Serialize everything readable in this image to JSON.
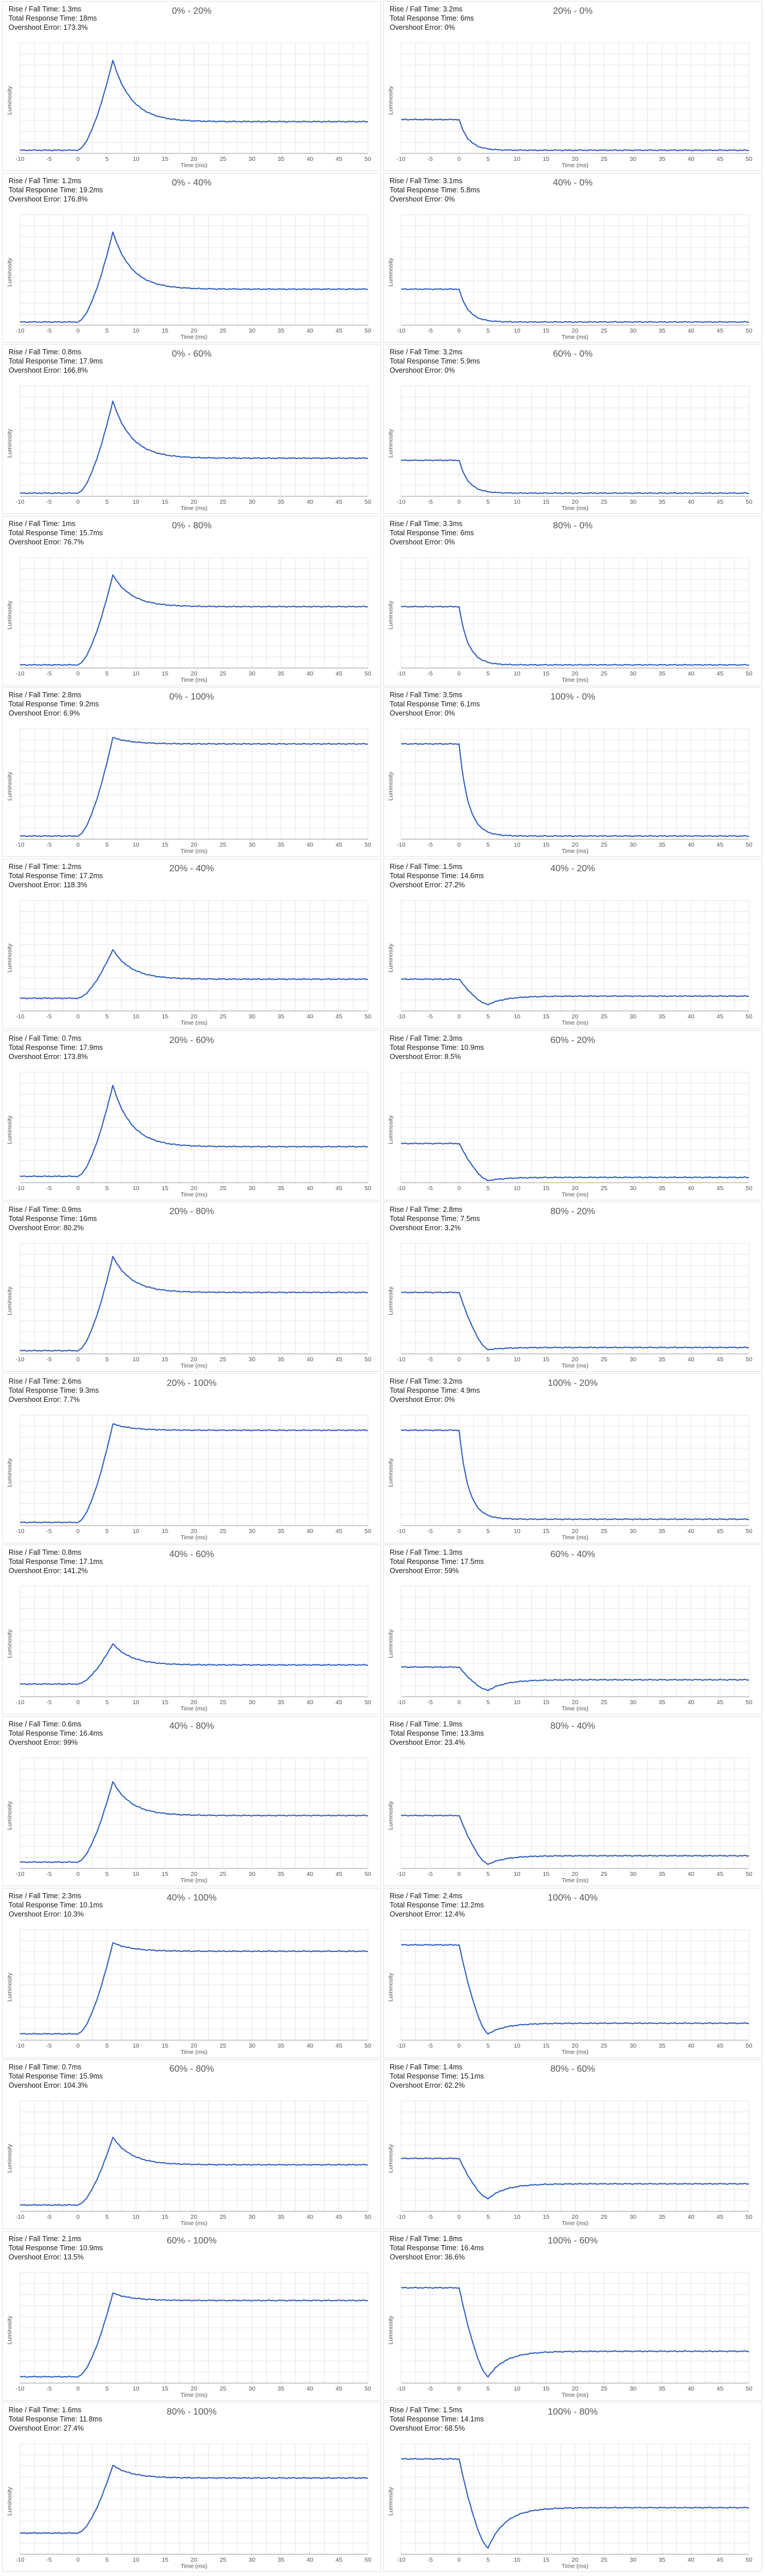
{
  "labels": {
    "rise_prefix": "Rise / Fall Time: ",
    "trt_prefix": "Total Response Time: ",
    "os_prefix": "Overshoot Error: ",
    "xlabel": "Time (ms)",
    "ylabel": "Luminosity"
  },
  "colors": {
    "line": "#2f5fbf",
    "grid": "#e6e6e6",
    "axis": "#999999"
  },
  "chart_data": [
    {
      "type": "line",
      "title": "0% - 20%",
      "rise_fall": "1.3ms",
      "total_response": "18ms",
      "overshoot": "173.3%",
      "x_ticks": [
        -10,
        -5,
        0,
        5,
        10,
        15,
        20,
        25,
        30,
        35,
        40,
        45,
        50
      ],
      "xlim": [
        -10,
        50
      ],
      "start_level": 0.03,
      "end_level": 0.3,
      "peak_level": 0.88,
      "peak_time_ms": 6,
      "grid": true
    },
    {
      "type": "line",
      "title": "20% - 0%",
      "rise_fall": "3.2ms",
      "total_response": "6ms",
      "overshoot": "0%",
      "x_ticks": [
        -10,
        -5,
        0,
        5,
        10,
        15,
        20,
        25,
        30,
        35,
        40,
        45,
        50
      ],
      "xlim": [
        -10,
        50
      ],
      "start_level": 0.32,
      "end_level": 0.03,
      "grid": true
    },
    {
      "type": "line",
      "title": "0% - 40%",
      "rise_fall": "1.2ms",
      "total_response": "19.2ms",
      "overshoot": "176.8%",
      "x_ticks": [
        -10,
        -5,
        0,
        5,
        10,
        15,
        20,
        25,
        30,
        35,
        40,
        45,
        50
      ],
      "xlim": [
        -10,
        50
      ],
      "start_level": 0.03,
      "end_level": 0.34,
      "peak_level": 0.88,
      "peak_time_ms": 6,
      "grid": true
    },
    {
      "type": "line",
      "title": "40% - 0%",
      "rise_fall": "3.1ms",
      "total_response": "5.8ms",
      "overshoot": "0%",
      "x_ticks": [
        -10,
        -5,
        0,
        5,
        10,
        15,
        20,
        25,
        30,
        35,
        40,
        45,
        50
      ],
      "xlim": [
        -10,
        50
      ],
      "start_level": 0.34,
      "end_level": 0.03,
      "grid": true
    },
    {
      "type": "line",
      "title": "0% - 60%",
      "rise_fall": "0.8ms",
      "total_response": "17.9ms",
      "overshoot": "166.8%",
      "x_ticks": [
        -10,
        -5,
        0,
        5,
        10,
        15,
        20,
        25,
        30,
        35,
        40,
        45,
        50
      ],
      "xlim": [
        -10,
        50
      ],
      "start_level": 0.03,
      "end_level": 0.36,
      "peak_level": 0.9,
      "peak_time_ms": 6,
      "grid": true
    },
    {
      "type": "line",
      "title": "60% - 0%",
      "rise_fall": "3.2ms",
      "total_response": "5.9ms",
      "overshoot": "0%",
      "x_ticks": [
        -10,
        -5,
        0,
        5,
        10,
        15,
        20,
        25,
        30,
        35,
        40,
        45,
        50
      ],
      "xlim": [
        -10,
        50
      ],
      "start_level": 0.34,
      "end_level": 0.03,
      "grid": true
    },
    {
      "type": "line",
      "title": "0% - 80%",
      "rise_fall": "1ms",
      "total_response": "15.7ms",
      "overshoot": "76.7%",
      "x_ticks": [
        -10,
        -5,
        0,
        5,
        10,
        15,
        20,
        25,
        30,
        35,
        40,
        45,
        50
      ],
      "xlim": [
        -10,
        50
      ],
      "start_level": 0.03,
      "end_level": 0.58,
      "peak_level": 0.88,
      "peak_time_ms": 6,
      "grid": true
    },
    {
      "type": "line",
      "title": "80% - 0%",
      "rise_fall": "3.3ms",
      "total_response": "6ms",
      "overshoot": "0%",
      "x_ticks": [
        -10,
        -5,
        0,
        5,
        10,
        15,
        20,
        25,
        30,
        35,
        40,
        45,
        50
      ],
      "xlim": [
        -10,
        50
      ],
      "start_level": 0.58,
      "end_level": 0.03,
      "grid": true
    },
    {
      "type": "line",
      "title": "0% - 100%",
      "rise_fall": "2.8ms",
      "total_response": "9.2ms",
      "overshoot": "6.9%",
      "x_ticks": [
        -10,
        -5,
        0,
        5,
        10,
        15,
        20,
        25,
        30,
        35,
        40,
        45,
        50
      ],
      "xlim": [
        -10,
        50
      ],
      "start_level": 0.03,
      "end_level": 0.9,
      "peak_level": 0.96,
      "peak_time_ms": 6,
      "grid": true
    },
    {
      "type": "line",
      "title": "100% - 0%",
      "rise_fall": "3.5ms",
      "total_response": "6.1ms",
      "overshoot": "0%",
      "x_ticks": [
        -10,
        -5,
        0,
        5,
        10,
        15,
        20,
        25,
        30,
        35,
        40,
        45,
        50
      ],
      "xlim": [
        -10,
        50
      ],
      "start_level": 0.9,
      "end_level": 0.03,
      "grid": true
    },
    {
      "type": "line",
      "title": "20% - 40%",
      "rise_fall": "1.2ms",
      "total_response": "17.2ms",
      "overshoot": "118.3%",
      "x_ticks": [
        -10,
        -5,
        0,
        5,
        10,
        15,
        20,
        25,
        30,
        35,
        40,
        45,
        50
      ],
      "xlim": [
        -10,
        50
      ],
      "start_level": 0.12,
      "end_level": 0.3,
      "peak_level": 0.58,
      "peak_time_ms": 6,
      "grid": true
    },
    {
      "type": "line",
      "title": "40% - 20%",
      "rise_fall": "1.5ms",
      "total_response": "14.6ms",
      "overshoot": "27.2%",
      "x_ticks": [
        -10,
        -5,
        0,
        5,
        10,
        15,
        20,
        25,
        30,
        35,
        40,
        45,
        50
      ],
      "xlim": [
        -10,
        50
      ],
      "start_level": 0.3,
      "end_level": 0.14,
      "dip_level": 0.06,
      "dip_time_ms": 5,
      "grid": true
    },
    {
      "type": "line",
      "title": "20% - 60%",
      "rise_fall": "0.7ms",
      "total_response": "17.9ms",
      "overshoot": "173.8%",
      "x_ticks": [
        -10,
        -5,
        0,
        5,
        10,
        15,
        20,
        25,
        30,
        35,
        40,
        45,
        50
      ],
      "xlim": [
        -10,
        50
      ],
      "start_level": 0.06,
      "end_level": 0.34,
      "peak_level": 0.92,
      "peak_time_ms": 6,
      "grid": true
    },
    {
      "type": "line",
      "title": "60% - 20%",
      "rise_fall": "2.3ms",
      "total_response": "10.9ms",
      "overshoot": "8.5%",
      "x_ticks": [
        -10,
        -5,
        0,
        5,
        10,
        15,
        20,
        25,
        30,
        35,
        40,
        45,
        50
      ],
      "xlim": [
        -10,
        50
      ],
      "start_level": 0.37,
      "end_level": 0.05,
      "dip_level": 0.02,
      "dip_time_ms": 5,
      "grid": true
    },
    {
      "type": "line",
      "title": "20% - 80%",
      "rise_fall": "0.9ms",
      "total_response": "16ms",
      "overshoot": "80.2%",
      "x_ticks": [
        -10,
        -5,
        0,
        5,
        10,
        15,
        20,
        25,
        30,
        35,
        40,
        45,
        50
      ],
      "xlim": [
        -10,
        50
      ],
      "start_level": 0.03,
      "end_level": 0.58,
      "peak_level": 0.92,
      "peak_time_ms": 6,
      "grid": true
    },
    {
      "type": "line",
      "title": "80% - 20%",
      "rise_fall": "2.8ms",
      "total_response": "7.5ms",
      "overshoot": "3.2%",
      "x_ticks": [
        -10,
        -5,
        0,
        5,
        10,
        15,
        20,
        25,
        30,
        35,
        40,
        45,
        50
      ],
      "xlim": [
        -10,
        50
      ],
      "start_level": 0.58,
      "end_level": 0.06,
      "dip_level": 0.04,
      "dip_time_ms": 5,
      "grid": true
    },
    {
      "type": "line",
      "title": "20% - 100%",
      "rise_fall": "2.6ms",
      "total_response": "9.3ms",
      "overshoot": "7.7%",
      "x_ticks": [
        -10,
        -5,
        0,
        5,
        10,
        15,
        20,
        25,
        30,
        35,
        40,
        45,
        50
      ],
      "xlim": [
        -10,
        50
      ],
      "start_level": 0.03,
      "end_level": 0.9,
      "peak_level": 0.96,
      "peak_time_ms": 6,
      "grid": true
    },
    {
      "type": "line",
      "title": "100% - 20%",
      "rise_fall": "3.2ms",
      "total_response": "4.9ms",
      "overshoot": "0%",
      "x_ticks": [
        -10,
        -5,
        0,
        5,
        10,
        15,
        20,
        25,
        30,
        35,
        40,
        45,
        50
      ],
      "xlim": [
        -10,
        50
      ],
      "start_level": 0.9,
      "end_level": 0.06,
      "grid": true
    },
    {
      "type": "line",
      "title": "40% - 60%",
      "rise_fall": "0.8ms",
      "total_response": "17.1ms",
      "overshoot": "141.2%",
      "x_ticks": [
        -10,
        -5,
        0,
        5,
        10,
        15,
        20,
        25,
        30,
        35,
        40,
        45,
        50
      ],
      "xlim": [
        -10,
        50
      ],
      "start_level": 0.12,
      "end_level": 0.3,
      "peak_level": 0.5,
      "peak_time_ms": 6,
      "grid": true
    },
    {
      "type": "line",
      "title": "60% - 40%",
      "rise_fall": "1.3ms",
      "total_response": "17.5ms",
      "overshoot": "59%",
      "x_ticks": [
        -10,
        -5,
        0,
        5,
        10,
        15,
        20,
        25,
        30,
        35,
        40,
        45,
        50
      ],
      "xlim": [
        -10,
        50
      ],
      "start_level": 0.28,
      "end_level": 0.16,
      "dip_level": 0.06,
      "dip_time_ms": 5,
      "grid": true
    },
    {
      "type": "line",
      "title": "40% - 80%",
      "rise_fall": "0.6ms",
      "total_response": "16.4ms",
      "overshoot": "99%",
      "x_ticks": [
        -10,
        -5,
        0,
        5,
        10,
        15,
        20,
        25,
        30,
        35,
        40,
        45,
        50
      ],
      "xlim": [
        -10,
        50
      ],
      "start_level": 0.06,
      "end_level": 0.5,
      "peak_level": 0.82,
      "peak_time_ms": 6,
      "grid": true
    },
    {
      "type": "line",
      "title": "80% - 40%",
      "rise_fall": "1.9ms",
      "total_response": "13.3ms",
      "overshoot": "23.4%",
      "x_ticks": [
        -10,
        -5,
        0,
        5,
        10,
        15,
        20,
        25,
        30,
        35,
        40,
        45,
        50
      ],
      "xlim": [
        -10,
        50
      ],
      "start_level": 0.5,
      "end_level": 0.12,
      "dip_level": 0.04,
      "dip_time_ms": 5,
      "grid": true
    },
    {
      "type": "line",
      "title": "40% - 100%",
      "rise_fall": "2.3ms",
      "total_response": "10.1ms",
      "overshoot": "10.3%",
      "x_ticks": [
        -10,
        -5,
        0,
        5,
        10,
        15,
        20,
        25,
        30,
        35,
        40,
        45,
        50
      ],
      "xlim": [
        -10,
        50
      ],
      "start_level": 0.06,
      "end_level": 0.84,
      "peak_level": 0.92,
      "peak_time_ms": 6,
      "grid": true
    },
    {
      "type": "line",
      "title": "100% - 40%",
      "rise_fall": "2.4ms",
      "total_response": "12.2ms",
      "overshoot": "12.4%",
      "x_ticks": [
        -10,
        -5,
        0,
        5,
        10,
        15,
        20,
        25,
        30,
        35,
        40,
        45,
        50
      ],
      "xlim": [
        -10,
        50
      ],
      "start_level": 0.9,
      "end_level": 0.16,
      "dip_level": 0.06,
      "dip_time_ms": 5,
      "grid": true
    },
    {
      "type": "line",
      "title": "60% - 80%",
      "rise_fall": "0.7ms",
      "total_response": "15.9ms",
      "overshoot": "104.3%",
      "x_ticks": [
        -10,
        -5,
        0,
        5,
        10,
        15,
        20,
        25,
        30,
        35,
        40,
        45,
        50
      ],
      "xlim": [
        -10,
        50
      ],
      "start_level": 0.06,
      "end_level": 0.44,
      "peak_level": 0.7,
      "peak_time_ms": 6,
      "grid": true
    },
    {
      "type": "line",
      "title": "80% - 60%",
      "rise_fall": "1.4ms",
      "total_response": "15.1ms",
      "overshoot": "62.2%",
      "x_ticks": [
        -10,
        -5,
        0,
        5,
        10,
        15,
        20,
        25,
        30,
        35,
        40,
        45,
        50
      ],
      "xlim": [
        -10,
        50
      ],
      "start_level": 0.5,
      "end_level": 0.26,
      "dip_level": 0.12,
      "dip_time_ms": 5,
      "grid": true
    },
    {
      "type": "line",
      "title": "60% - 100%",
      "rise_fall": "2.1ms",
      "total_response": "10.9ms",
      "overshoot": "13.5%",
      "x_ticks": [
        -10,
        -5,
        0,
        5,
        10,
        15,
        20,
        25,
        30,
        35,
        40,
        45,
        50
      ],
      "xlim": [
        -10,
        50
      ],
      "start_level": 0.06,
      "end_level": 0.78,
      "peak_level": 0.85,
      "peak_time_ms": 6,
      "grid": true
    },
    {
      "type": "line",
      "title": "100% - 60%",
      "rise_fall": "1.8ms",
      "total_response": "16.4ms",
      "overshoot": "36.6%",
      "x_ticks": [
        -10,
        -5,
        0,
        5,
        10,
        15,
        20,
        25,
        30,
        35,
        40,
        45,
        50
      ],
      "xlim": [
        -10,
        50
      ],
      "start_level": 0.9,
      "end_level": 0.3,
      "dip_level": 0.06,
      "dip_time_ms": 5,
      "grid": true
    },
    {
      "type": "line",
      "title": "80% - 100%",
      "rise_fall": "1.6ms",
      "total_response": "11.8ms",
      "overshoot": "27.4%",
      "x_ticks": [
        -10,
        -5,
        0,
        5,
        10,
        15,
        20,
        25,
        30,
        35,
        40,
        45,
        50
      ],
      "xlim": [
        -10,
        50
      ],
      "start_level": 0.2,
      "end_level": 0.72,
      "peak_level": 0.84,
      "peak_time_ms": 6,
      "grid": true
    },
    {
      "type": "line",
      "title": "100% - 80%",
      "rise_fall": "1.5ms",
      "total_response": "14.1ms",
      "overshoot": "68.5%",
      "x_ticks": [
        -10,
        -5,
        0,
        5,
        10,
        15,
        20,
        25,
        30,
        35,
        40,
        45,
        50
      ],
      "xlim": [
        -10,
        50
      ],
      "start_level": 0.9,
      "end_level": 0.44,
      "dip_level": 0.06,
      "dip_time_ms": 5,
      "grid": true
    }
  ]
}
